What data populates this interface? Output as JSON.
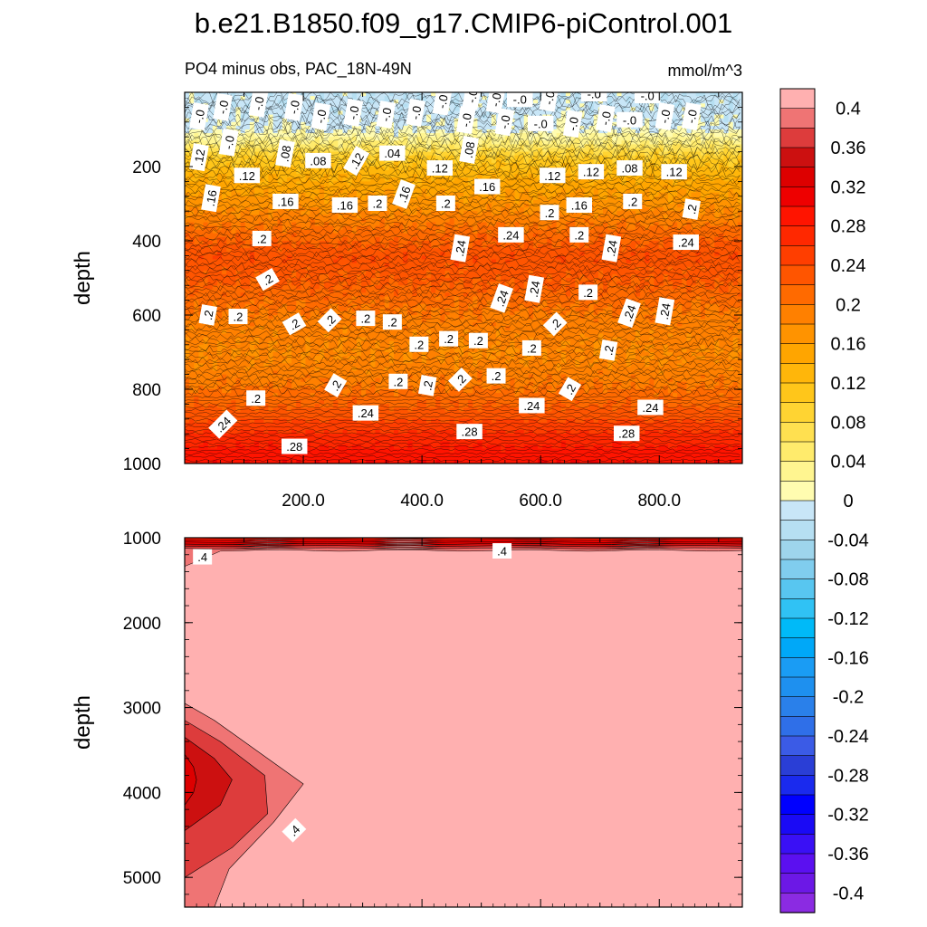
{
  "chart_data": {
    "type": "heatmap",
    "title": "b.e21.B1850.f09_g17.CMIP6-piControl.001",
    "subtitle_left": "PO4 minus obs, PAC_18N-49N",
    "subtitle_right": "mmol/m^3",
    "colorbar": {
      "levels": [
        -0.42,
        -0.4,
        -0.38,
        -0.36,
        -0.34,
        -0.32,
        -0.3,
        -0.28,
        -0.26,
        -0.24,
        -0.22,
        -0.2,
        -0.18,
        -0.16,
        -0.14,
        -0.12,
        -0.1,
        -0.08,
        -0.06,
        -0.04,
        -0.02,
        0,
        0.02,
        0.04,
        0.06,
        0.08,
        0.1,
        0.12,
        0.14,
        0.16,
        0.18,
        0.2,
        0.22,
        0.24,
        0.26,
        0.28,
        0.3,
        0.32,
        0.34,
        0.36,
        0.38,
        0.4,
        0.42
      ],
      "labels": [
        "0.4",
        "0.36",
        "0.32",
        "0.28",
        "0.24",
        "0.2",
        "0.16",
        "0.12",
        "0.08",
        "0.04",
        "0",
        "-0.04",
        "-0.08",
        "-0.12",
        "-0.16",
        "-0.2",
        "-0.24",
        "-0.28",
        "-0.32",
        "-0.36",
        "-0.4"
      ],
      "label_values": [
        0.4,
        0.36,
        0.32,
        0.28,
        0.24,
        0.2,
        0.16,
        0.12,
        0.08,
        0.04,
        0,
        -0.04,
        -0.08,
        -0.12,
        -0.16,
        -0.2,
        -0.24,
        -0.28,
        -0.32,
        -0.36,
        -0.4
      ],
      "colors": [
        "#8b2be2",
        "#6c18e6",
        "#5b10f0",
        "#3a10f5",
        "#1a0af5",
        "#0000ff",
        "#1a2aee",
        "#2a3ed6",
        "#3b5be6",
        "#2f6fe8",
        "#2a80ea",
        "#1e90ef",
        "#1a9cf4",
        "#00a8f8",
        "#00baf8",
        "#30c2f4",
        "#58c6f0",
        "#80cdee",
        "#9ed5ec",
        "#b6dff2",
        "#c8e6f7",
        "#fffcb0",
        "#fff590",
        "#ffeb6c",
        "#ffe050",
        "#ffd432",
        "#ffc61a",
        "#ffb60a",
        "#ffa500",
        "#ff9300",
        "#ff8000",
        "#ff6a00",
        "#ff5500",
        "#ff3e00",
        "#ff2800",
        "#ff1400",
        "#ee0000",
        "#dd0000",
        "#cc1010",
        "#dd3c3c",
        "#ef7474",
        "#ffb0b0"
      ]
    },
    "panels": [
      {
        "name": "upper-ocean",
        "ylabel": "depth",
        "xlim": [
          0,
          940
        ],
        "ylim": [
          0,
          1000
        ],
        "y_reversed": true,
        "xticks": [
          200,
          400,
          600,
          800
        ],
        "xtick_labels": [
          "200.0",
          "400.0",
          "600.0",
          "800.0"
        ],
        "yticks": [
          200,
          400,
          600,
          800,
          1000
        ],
        "ytick_labels": [
          "200",
          "400",
          "600",
          "800",
          "1000"
        ],
        "profile": [
          {
            "depth": 0,
            "value": -0.015
          },
          {
            "depth": 55,
            "value": -0.01
          },
          {
            "depth": 100,
            "value": 0.0
          },
          {
            "depth": 135,
            "value": 0.04
          },
          {
            "depth": 175,
            "value": 0.1
          },
          {
            "depth": 230,
            "value": 0.14
          },
          {
            "depth": 300,
            "value": 0.17
          },
          {
            "depth": 380,
            "value": 0.21
          },
          {
            "depth": 440,
            "value": 0.235
          },
          {
            "depth": 520,
            "value": 0.22
          },
          {
            "depth": 600,
            "value": 0.195
          },
          {
            "depth": 700,
            "value": 0.18
          },
          {
            "depth": 780,
            "value": 0.195
          },
          {
            "depth": 860,
            "value": 0.225
          },
          {
            "depth": 930,
            "value": 0.27
          },
          {
            "depth": 1000,
            "value": 0.3
          }
        ],
        "contour_labels": [
          {
            "text": "-.0",
            "x": 25,
            "depth": 65,
            "angle": -80
          },
          {
            "text": "-.0",
            "x": 65,
            "depth": 40,
            "angle": -80
          },
          {
            "text": "-.0",
            "x": 125,
            "depth": 30,
            "angle": -80
          },
          {
            "text": "-.0",
            "x": 185,
            "depth": 40,
            "angle": -80
          },
          {
            "text": "-.0",
            "x": 230,
            "depth": 65,
            "angle": -80
          },
          {
            "text": "-.0",
            "x": 285,
            "depth": 55,
            "angle": -80
          },
          {
            "text": "-.0",
            "x": 340,
            "depth": 60,
            "angle": -80
          },
          {
            "text": "-.0",
            "x": 390,
            "depth": 55,
            "angle": -80
          },
          {
            "text": "-.0",
            "x": 435,
            "depth": 25,
            "angle": -80
          },
          {
            "text": "-.0",
            "x": 475,
            "depth": 75,
            "angle": -80
          },
          {
            "text": "-.0",
            "x": 485,
            "depth": 10,
            "angle": -80
          },
          {
            "text": "-.0",
            "x": 525,
            "depth": 20,
            "angle": -80
          },
          {
            "text": "-.0",
            "x": 540,
            "depth": 80,
            "angle": -80
          },
          {
            "text": "-.0",
            "x": 565,
            "depth": 20,
            "angle": 0
          },
          {
            "text": "-.0",
            "x": 600,
            "depth": 85,
            "angle": 0
          },
          {
            "text": "-.0",
            "x": 615,
            "depth": 15,
            "angle": -80
          },
          {
            "text": "-.0",
            "x": 655,
            "depth": 85,
            "angle": -80
          },
          {
            "text": "-.0",
            "x": 710,
            "depth": 70,
            "angle": -80
          },
          {
            "text": "-.0",
            "x": 690,
            "depth": 5,
            "angle": 0
          },
          {
            "text": "-.0",
            "x": 750,
            "depth": 75,
            "angle": 0
          },
          {
            "text": "-.0",
            "x": 780,
            "depth": 10,
            "angle": 0
          },
          {
            "text": "-.0",
            "x": 810,
            "depth": 65,
            "angle": -80
          },
          {
            "text": "-.0",
            "x": 855,
            "depth": 65,
            "angle": -80
          },
          {
            "text": ".12",
            "x": 25,
            "depth": 175,
            "angle": -80
          },
          {
            "text": "-.0",
            "x": 75,
            "depth": 135,
            "angle": -80
          },
          {
            "text": ".08",
            "x": 170,
            "depth": 165,
            "angle": -80
          },
          {
            "text": ".08",
            "x": 225,
            "depth": 185,
            "angle": 0
          },
          {
            "text": ".12",
            "x": 290,
            "depth": 185,
            "angle": -60
          },
          {
            "text": ".04",
            "x": 350,
            "depth": 165,
            "angle": 0
          },
          {
            "text": ".08",
            "x": 480,
            "depth": 155,
            "angle": -80
          },
          {
            "text": ".12",
            "x": 430,
            "depth": 205,
            "angle": 0
          },
          {
            "text": ".12",
            "x": 105,
            "depth": 225,
            "angle": 0
          },
          {
            "text": ".12",
            "x": 620,
            "depth": 225,
            "angle": 0
          },
          {
            "text": ".12",
            "x": 685,
            "depth": 215,
            "angle": 0
          },
          {
            "text": ".08",
            "x": 750,
            "depth": 205,
            "angle": 0
          },
          {
            "text": ".12",
            "x": 825,
            "depth": 215,
            "angle": 0
          },
          {
            "text": ".16",
            "x": 45,
            "depth": 285,
            "angle": -80
          },
          {
            "text": ".16",
            "x": 170,
            "depth": 295,
            "angle": 0
          },
          {
            "text": ".16",
            "x": 270,
            "depth": 305,
            "angle": 0
          },
          {
            "text": ".2",
            "x": 325,
            "depth": 300,
            "angle": 0
          },
          {
            "text": ".16",
            "x": 370,
            "depth": 275,
            "angle": -70
          },
          {
            "text": ".2",
            "x": 440,
            "depth": 300,
            "angle": 0
          },
          {
            "text": ".16",
            "x": 510,
            "depth": 255,
            "angle": 0
          },
          {
            "text": ".2",
            "x": 615,
            "depth": 325,
            "angle": 0
          },
          {
            "text": ".16",
            "x": 665,
            "depth": 305,
            "angle": 0
          },
          {
            "text": ".2",
            "x": 755,
            "depth": 295,
            "angle": 0
          },
          {
            "text": ".2",
            "x": 855,
            "depth": 315,
            "angle": -80
          },
          {
            "text": ".2",
            "x": 130,
            "depth": 395,
            "angle": 0
          },
          {
            "text": ".24",
            "x": 465,
            "depth": 420,
            "angle": -80
          },
          {
            "text": ".24",
            "x": 550,
            "depth": 385,
            "angle": 0
          },
          {
            "text": ".2",
            "x": 665,
            "depth": 385,
            "angle": 0
          },
          {
            "text": ".24",
            "x": 720,
            "depth": 420,
            "angle": -80
          },
          {
            "text": ".24",
            "x": 845,
            "depth": 405,
            "angle": 0
          },
          {
            "text": ".2",
            "x": 140,
            "depth": 505,
            "angle": -30
          },
          {
            "text": ".24",
            "x": 535,
            "depth": 555,
            "angle": -70
          },
          {
            "text": ".24",
            "x": 590,
            "depth": 530,
            "angle": -80
          },
          {
            "text": ".2",
            "x": 680,
            "depth": 540,
            "angle": 0
          },
          {
            "text": ".24",
            "x": 750,
            "depth": 595,
            "angle": -70
          },
          {
            "text": ".24",
            "x": 810,
            "depth": 590,
            "angle": -80
          },
          {
            "text": ".2",
            "x": 40,
            "depth": 600,
            "angle": -80
          },
          {
            "text": ".2",
            "x": 90,
            "depth": 605,
            "angle": 0
          },
          {
            "text": ".2",
            "x": 185,
            "depth": 625,
            "angle": -30
          },
          {
            "text": ".2",
            "x": 245,
            "depth": 615,
            "angle": -45
          },
          {
            "text": ".2",
            "x": 305,
            "depth": 610,
            "angle": 0
          },
          {
            "text": ".2",
            "x": 350,
            "depth": 620,
            "angle": 0
          },
          {
            "text": ".2",
            "x": 625,
            "depth": 625,
            "angle": -45
          },
          {
            "text": ".2",
            "x": 395,
            "depth": 680,
            "angle": 0
          },
          {
            "text": ".2",
            "x": 445,
            "depth": 665,
            "angle": 0
          },
          {
            "text": ".2",
            "x": 495,
            "depth": 670,
            "angle": 0
          },
          {
            "text": ".2",
            "x": 585,
            "depth": 690,
            "angle": 0
          },
          {
            "text": ".2",
            "x": 715,
            "depth": 695,
            "angle": -80
          },
          {
            "text": ".2",
            "x": 255,
            "depth": 790,
            "angle": -60
          },
          {
            "text": ".2",
            "x": 360,
            "depth": 780,
            "angle": 0
          },
          {
            "text": ".2",
            "x": 410,
            "depth": 790,
            "angle": -80
          },
          {
            "text": ".2",
            "x": 465,
            "depth": 775,
            "angle": -45
          },
          {
            "text": ".2",
            "x": 525,
            "depth": 765,
            "angle": 0
          },
          {
            "text": ".2",
            "x": 650,
            "depth": 800,
            "angle": -60
          },
          {
            "text": ".2",
            "x": 120,
            "depth": 825,
            "angle": 0
          },
          {
            "text": ".24",
            "x": 585,
            "depth": 845,
            "angle": 0
          },
          {
            "text": ".24",
            "x": 785,
            "depth": 850,
            "angle": 0
          },
          {
            "text": ".24",
            "x": 305,
            "depth": 865,
            "angle": 0
          },
          {
            "text": ".24",
            "x": 65,
            "depth": 895,
            "angle": -45
          },
          {
            "text": ".28",
            "x": 480,
            "depth": 915,
            "angle": 0
          },
          {
            "text": ".28",
            "x": 745,
            "depth": 920,
            "angle": 0
          },
          {
            "text": ".28",
            "x": 185,
            "depth": 955,
            "angle": 0
          }
        ]
      },
      {
        "name": "deep-ocean",
        "ylabel": "depth",
        "xlim": [
          0,
          940
        ],
        "ylim": [
          1000,
          5350
        ],
        "y_reversed": true,
        "yticks": [
          1000,
          2000,
          3000,
          4000,
          5000
        ],
        "ytick_labels": [
          "1000",
          "2000",
          "3000",
          "4000",
          "5000"
        ],
        "background_value": 0.41,
        "surface_gradient_values": [
          0.29,
          0.31,
          0.33,
          0.35,
          0.37,
          0.39
        ],
        "anomaly_levels": [
          {
            "value": 0.39,
            "points": [
              [
                0,
                2950
              ],
              [
                50,
                3150
              ],
              [
                120,
                3500
              ],
              [
                200,
                3900
              ],
              [
                150,
                4350
              ],
              [
                75,
                4900
              ],
              [
                50,
                5350
              ],
              [
                0,
                5350
              ]
            ]
          },
          {
            "value": 0.37,
            "points": [
              [
                0,
                3150
              ],
              [
                60,
                3400
              ],
              [
                135,
                3800
              ],
              [
                140,
                4250
              ],
              [
                80,
                4650
              ],
              [
                0,
                5000
              ]
            ]
          },
          {
            "value": 0.35,
            "points": [
              [
                0,
                3350
              ],
              [
                50,
                3600
              ],
              [
                80,
                3850
              ],
              [
                60,
                4150
              ],
              [
                0,
                4450
              ]
            ]
          },
          {
            "value": 0.33,
            "points": [
              [
                0,
                3550
              ],
              [
                15,
                3700
              ],
              [
                20,
                3850
              ],
              [
                15,
                4000
              ],
              [
                0,
                4150
              ]
            ]
          }
        ],
        "contour_labels": [
          {
            "text": ".4",
            "x": 30,
            "depth": 1230,
            "angle": 0
          },
          {
            "text": ".4",
            "x": 535,
            "depth": 1160,
            "angle": 0
          },
          {
            "text": ".4",
            "x": 185,
            "depth": 4450,
            "angle": -45
          }
        ]
      }
    ]
  }
}
